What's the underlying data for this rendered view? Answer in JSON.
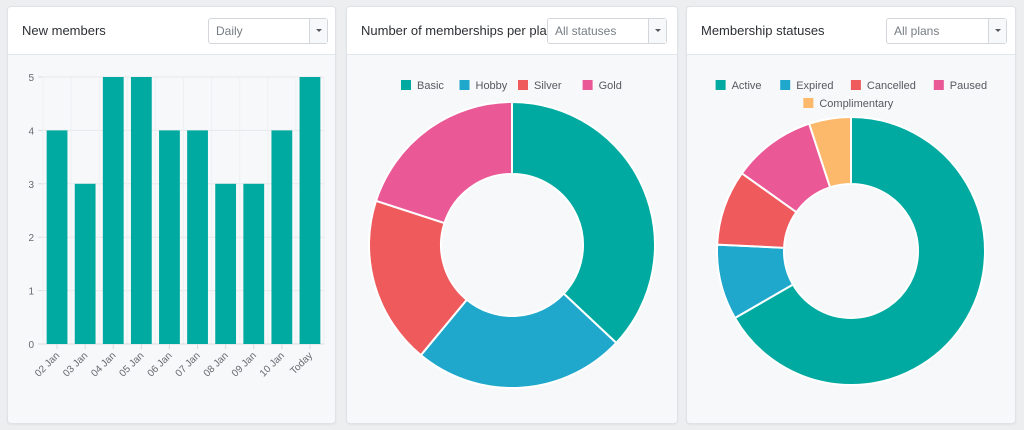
{
  "colors": {
    "teal": "#00aaa0",
    "blue": "#1fa8cb",
    "red": "#ef5a5d",
    "pink": "#ea5896",
    "orange": "#fcb96b"
  },
  "panels": {
    "new_members": {
      "title": "New members",
      "select": {
        "value": "Daily",
        "icon": "chevron-down-icon"
      }
    },
    "per_plan": {
      "title": "Number of memberships per plan",
      "select": {
        "value": "All statuses",
        "icon": "chevron-down-icon"
      }
    },
    "statuses": {
      "title": "Membership statuses",
      "select": {
        "value": "All plans",
        "icon": "chevron-down-icon"
      }
    }
  },
  "chart_data": [
    {
      "type": "bar",
      "title": "New members",
      "categories": [
        "02 Jan",
        "03 Jan",
        "04 Jan",
        "05 Jan",
        "06 Jan",
        "07 Jan",
        "08 Jan",
        "09 Jan",
        "10 Jan",
        "Today"
      ],
      "values": [
        4,
        3,
        5,
        5,
        4,
        4,
        3,
        3,
        4,
        5
      ],
      "yticks": [
        0,
        1,
        2,
        3,
        4,
        5
      ],
      "ylim": [
        0,
        5
      ],
      "grid": true,
      "xlabel": "",
      "ylabel": "",
      "color": "#00aaa0"
    },
    {
      "type": "pie",
      "donut": true,
      "title": "Number of memberships per plan",
      "legend_position": "top",
      "categories": [
        "Basic",
        "Hobby",
        "Silver",
        "Gold"
      ],
      "values": [
        37,
        24,
        19,
        20
      ],
      "colors": [
        "#00aaa0",
        "#1fa8cb",
        "#ef5a5d",
        "#ea5896"
      ]
    },
    {
      "type": "pie",
      "donut": true,
      "title": "Membership statuses",
      "legend_position": "top",
      "categories": [
        "Active",
        "Expired",
        "Cancelled",
        "Paused",
        "Complimentary"
      ],
      "values": [
        66,
        9,
        9,
        10,
        5
      ],
      "colors": [
        "#00aaa0",
        "#1fa8cb",
        "#ef5a5d",
        "#ea5896",
        "#fcb96b"
      ]
    }
  ]
}
